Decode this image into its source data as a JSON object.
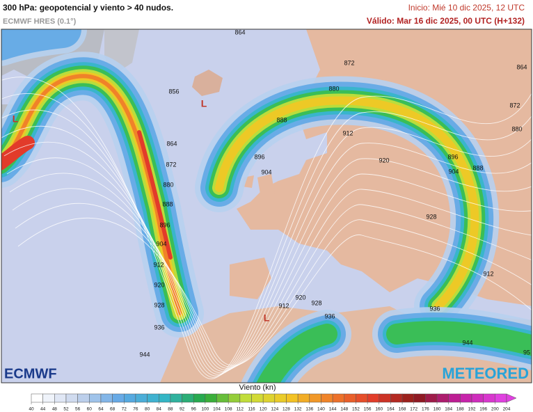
{
  "header": {
    "title": "300 hPa: geopotencial y viento > 40 nudos.",
    "model": "ECMWF HRES (0.1°)",
    "init": "Inicio: Mié 10 dic 2025, 12 UTC",
    "valid": "Válido: Mar 16 dic 2025, 00 UTC (H+132)"
  },
  "map": {
    "contour_labels": [
      "864",
      "872",
      "880",
      "856",
      "888",
      "912",
      "864",
      "872",
      "896",
      "904",
      "920",
      "880",
      "888",
      "896",
      "928",
      "904",
      "912",
      "920",
      "928",
      "912",
      "920",
      "928",
      "936",
      "936",
      "936",
      "944",
      "944",
      "896",
      "904",
      "888",
      "864",
      "872",
      "880",
      "912",
      "95"
    ],
    "lows": [
      "L",
      "L",
      "L"
    ]
  },
  "logos": {
    "left": "ECMWF",
    "right": "METEORED"
  },
  "legend": {
    "title": "Viento (kn)",
    "ticks": [
      40,
      44,
      48,
      52,
      56,
      60,
      64,
      68,
      72,
      76,
      80,
      84,
      88,
      92,
      96,
      100,
      104,
      108,
      112,
      116,
      120,
      124,
      128,
      132,
      136,
      140,
      144,
      148,
      152,
      156,
      160,
      164,
      168,
      172,
      176,
      180,
      184,
      188,
      192,
      196,
      200,
      204
    ]
  }
}
